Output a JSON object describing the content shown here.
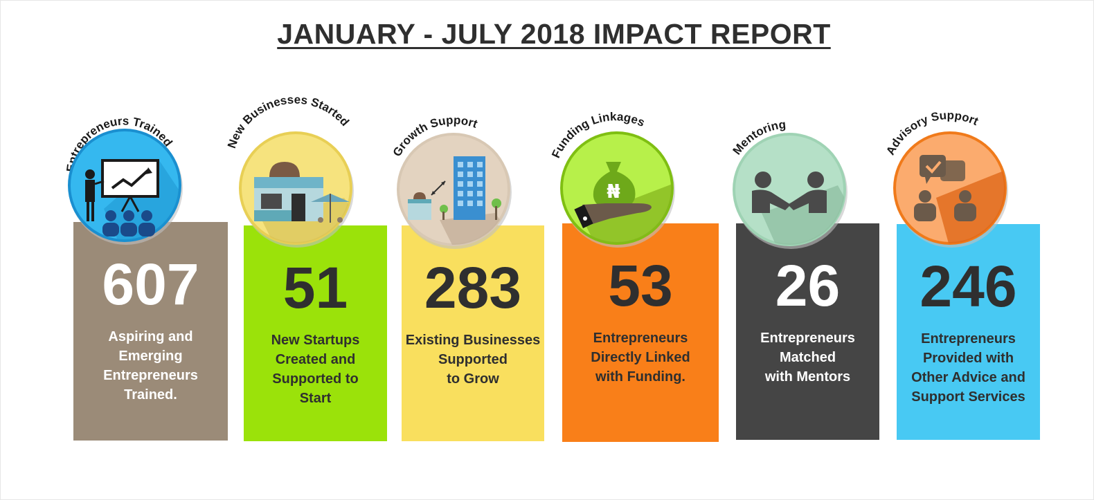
{
  "report": {
    "title": "JANUARY - JULY 2018 IMPACT REPORT"
  },
  "colors": {
    "gray_card": "#9b8b78",
    "green_card": "#9be20a",
    "yellow_card": "#f9df5e",
    "orange_card": "#f97f19",
    "dark_card": "#454545",
    "blue_card": "#48c9f3"
  },
  "stats": [
    {
      "label": "Entrepreneurs Trained",
      "value": "607",
      "description": "Aspiring and\nEmerging\nEntrepreneurs\nTrained.",
      "icon": "trainer-presentation-icon"
    },
    {
      "label": "New Businesses Started",
      "value": "51",
      "description": "New Startups\nCreated and\nSupported to\nStart",
      "icon": "storefront-icon"
    },
    {
      "label": "Growth Support",
      "value": "283",
      "description": "Existing Businesses\nSupported\nto Grow",
      "icon": "shop-to-building-icon"
    },
    {
      "label": "Funding Linkages",
      "value": "53",
      "description": "Entrepreneurs\nDirectly Linked\nwith Funding.",
      "icon": "naira-money-bag-icon"
    },
    {
      "label": "Mentoring",
      "value": "26",
      "description": "Entrepreneurs\nMatched\nwith Mentors",
      "icon": "handshake-icon"
    },
    {
      "label": "Advisory Support",
      "value": "246",
      "description": "Entrepreneurs\nProvided with\nOther Advice and\nSupport Services",
      "icon": "advisory-chat-icon"
    }
  ]
}
